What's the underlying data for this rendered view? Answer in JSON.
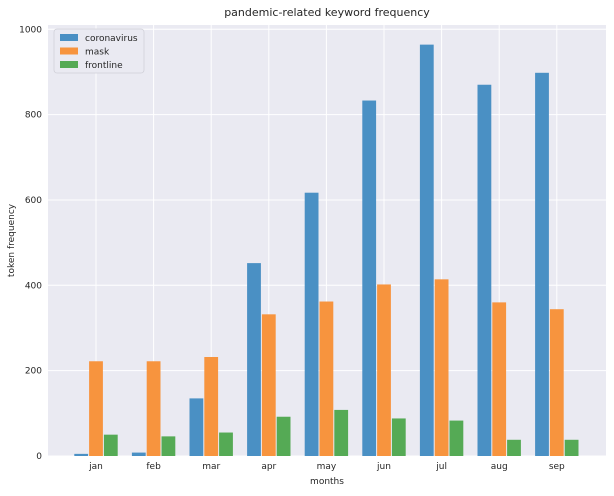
{
  "chart_data": {
    "type": "bar",
    "title": "pandemic-related keyword frequency",
    "xlabel": "months",
    "ylabel": "token frequency",
    "categories": [
      "jan",
      "feb",
      "mar",
      "apr",
      "may",
      "jun",
      "jul",
      "aug",
      "sep"
    ],
    "series": [
      {
        "name": "coronavirus",
        "color": "#4a90c4",
        "values": [
          5,
          8,
          135,
          452,
          617,
          833,
          964,
          870,
          898
        ]
      },
      {
        "name": "mask",
        "color": "#f7943e",
        "values": [
          222,
          222,
          232,
          332,
          362,
          402,
          414,
          360,
          344
        ]
      },
      {
        "name": "frontline",
        "color": "#55aa55",
        "values": [
          50,
          46,
          55,
          92,
          108,
          88,
          83,
          38,
          38
        ]
      }
    ],
    "ylim": [
      0,
      1010
    ],
    "yticks": [
      0,
      200,
      400,
      600,
      800,
      1000
    ],
    "grid": true,
    "legend_position": "top-left",
    "plot_background": "#eaeaf2",
    "grid_color": "#ffffff"
  }
}
